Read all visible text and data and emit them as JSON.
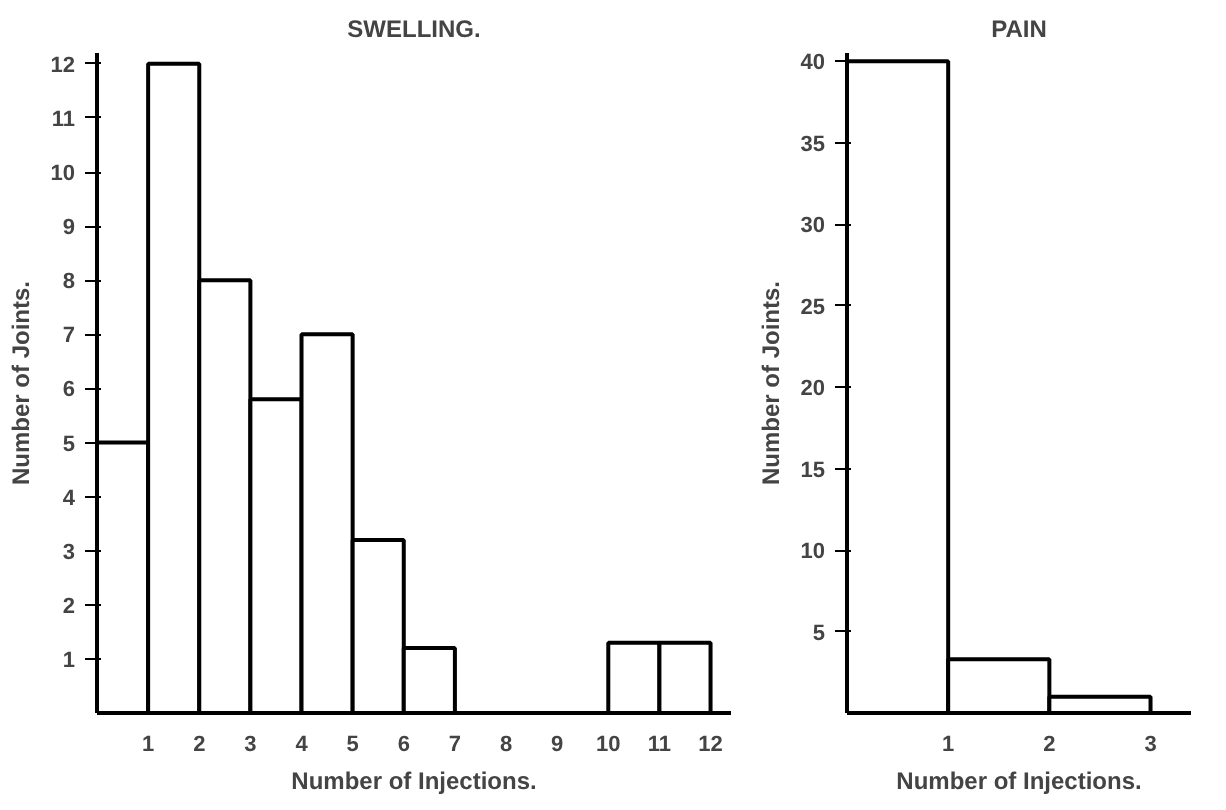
{
  "chart_data": [
    {
      "type": "histogram",
      "title": "SWELLING.",
      "xlabel": "Number of Injections.",
      "ylabel": "Number of Joints.",
      "bins": [
        0,
        1,
        2,
        3,
        4,
        5,
        6,
        7,
        8,
        9,
        10,
        11,
        12
      ],
      "values": [
        5,
        12,
        8,
        5.8,
        7,
        3.2,
        1.2,
        0,
        0,
        0,
        1.3,
        1.3
      ],
      "color": "#ffffff",
      "xlim": [
        0,
        12.4
      ],
      "ylim": [
        0,
        12.2
      ],
      "xticks": [
        1,
        2,
        3,
        4,
        5,
        6,
        7,
        8,
        9,
        10,
        11,
        12
      ],
      "yticks": [
        1,
        2,
        3,
        4,
        5,
        6,
        7,
        8,
        9,
        10,
        11,
        12
      ],
      "grid": false
    },
    {
      "type": "histogram",
      "title": "PAIN",
      "xlabel": "Number of Injections.",
      "ylabel": "Number of Joints.",
      "bins": [
        0,
        1,
        2,
        3
      ],
      "values": [
        40,
        3.3,
        1
      ],
      "color": "#ffffff",
      "xlim": [
        0,
        3.4
      ],
      "ylim": [
        0,
        40.5
      ],
      "xticks": [
        1,
        2,
        3
      ],
      "yticks": [
        5,
        10,
        15,
        20,
        25,
        30,
        35,
        40
      ],
      "grid": false
    }
  ]
}
